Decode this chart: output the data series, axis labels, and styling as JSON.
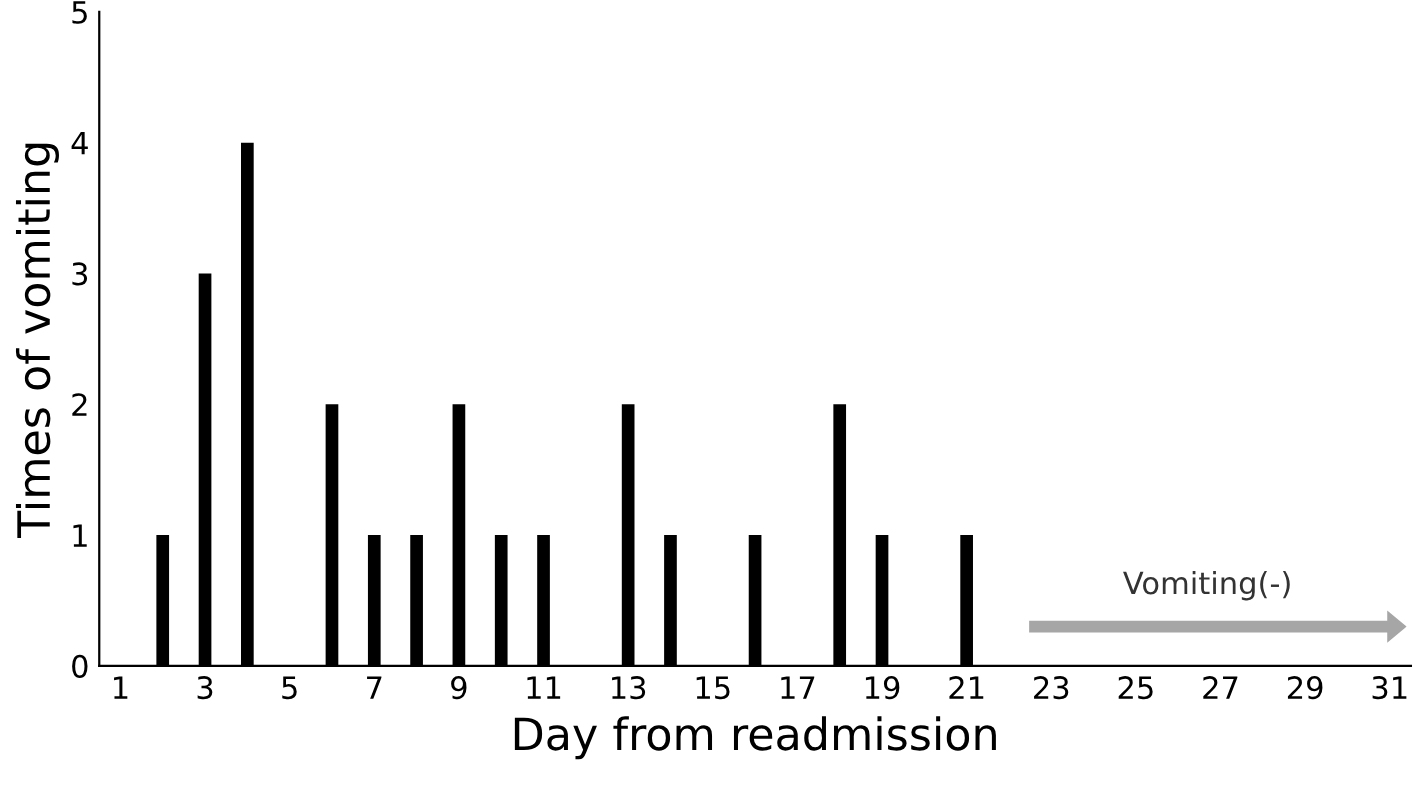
{
  "chart_data": {
    "type": "bar",
    "xlabel": "Day from readmission",
    "ylabel": "Times of vomiting",
    "x": [
      2,
      3,
      4,
      6,
      7,
      8,
      9,
      10,
      11,
      13,
      14,
      16,
      18,
      19,
      21
    ],
    "values": [
      1,
      3,
      4,
      2,
      1,
      1,
      2,
      1,
      1,
      2,
      1,
      1,
      2,
      1,
      1
    ],
    "color": "#000000",
    "xlim": [
      0.5,
      31.5
    ],
    "xticks": [
      1,
      3,
      5,
      7,
      9,
      11,
      13,
      15,
      17,
      19,
      21,
      23,
      25,
      27,
      29,
      31
    ],
    "ylim": [
      0,
      5
    ],
    "yticks": [
      0,
      1,
      2,
      3,
      4,
      5
    ],
    "grid": false,
    "legend": false,
    "annotations": [
      "Vomiting(-)"
    ]
  }
}
